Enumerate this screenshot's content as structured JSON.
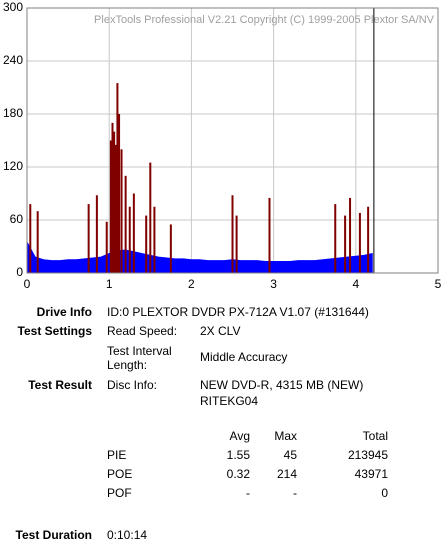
{
  "chart_data": {
    "type": "bar",
    "title": "PlexTools Professional V2.21 Copyright (C) 1999-2005 Plextor SA/NV",
    "xlim": [
      0,
      5
    ],
    "xticks": [
      0,
      1,
      2,
      3,
      4,
      5
    ],
    "ylim": [
      0,
      300
    ],
    "yticks": [
      0,
      60,
      120,
      180,
      240,
      300
    ],
    "grid": true,
    "end_x": 4.22,
    "series": [
      {
        "style": "area",
        "color": "#0000ff",
        "x": [
          0,
          0.1,
          0.2,
          0.3,
          0.4,
          0.5,
          0.6,
          0.7,
          0.8,
          0.9,
          1.0,
          1.1,
          1.2,
          1.3,
          1.4,
          1.5,
          1.6,
          1.7,
          1.8,
          1.9,
          2.0,
          2.1,
          2.2,
          2.3,
          2.4,
          2.5,
          2.6,
          2.7,
          2.8,
          2.9,
          3.0,
          3.1,
          3.2,
          3.3,
          3.4,
          3.5,
          3.6,
          3.7,
          3.8,
          3.9,
          4.0,
          4.1,
          4.2
        ],
        "values": [
          35,
          18,
          15,
          14,
          14,
          15,
          15,
          16,
          17,
          18,
          22,
          25,
          26,
          24,
          22,
          20,
          18,
          17,
          16,
          16,
          15,
          15,
          14,
          14,
          14,
          15,
          14,
          14,
          14,
          13,
          13,
          13,
          13,
          14,
          14,
          14,
          15,
          16,
          17,
          18,
          19,
          20,
          22
        ]
      },
      {
        "style": "bars",
        "color": "#800000",
        "x": [
          0.04,
          0.13,
          0.75,
          0.85,
          0.97,
          1.02,
          1.04,
          1.06,
          1.08,
          1.1,
          1.12,
          1.15,
          1.2,
          1.25,
          1.3,
          1.45,
          1.5,
          1.55,
          1.75,
          2.5,
          2.55,
          2.95,
          3.75,
          3.87,
          3.93,
          4.05,
          4.15
        ],
        "values": [
          78,
          70,
          78,
          88,
          58,
          150,
          170,
          160,
          145,
          215,
          180,
          140,
          110,
          75,
          90,
          65,
          125,
          75,
          55,
          88,
          65,
          85,
          78,
          65,
          85,
          68,
          75
        ]
      }
    ]
  },
  "info": {
    "drive_info": {
      "label": "Drive Info",
      "value": "ID:0 PLEXTOR DVDR PX-712A V1.07 (#131644)"
    },
    "test_settings": {
      "label": "Test Settings",
      "read_speed": {
        "label": "Read Speed:",
        "value": "2X CLV"
      },
      "interval": {
        "label": [
          "Test Interval",
          "Length:"
        ],
        "value": "Middle Accuracy"
      }
    },
    "test_result": {
      "label": "Test Result",
      "disc_info": {
        "label": "Disc Info:",
        "value": [
          "NEW DVD-R, 4315 MB (NEW)",
          "RITEKG04"
        ]
      }
    },
    "stats": {
      "columns": [
        "Avg",
        "Max",
        "Total"
      ],
      "rows": [
        {
          "name": "PIE",
          "cells": [
            1.55,
            45,
            213945
          ]
        },
        {
          "name": "POE",
          "cells": [
            0.32,
            214,
            43971
          ]
        },
        {
          "name": "POF",
          "cells": [
            "-",
            "-",
            0
          ]
        }
      ]
    },
    "test_duration": {
      "label": "Test Duration",
      "value": "0:10:14"
    }
  }
}
